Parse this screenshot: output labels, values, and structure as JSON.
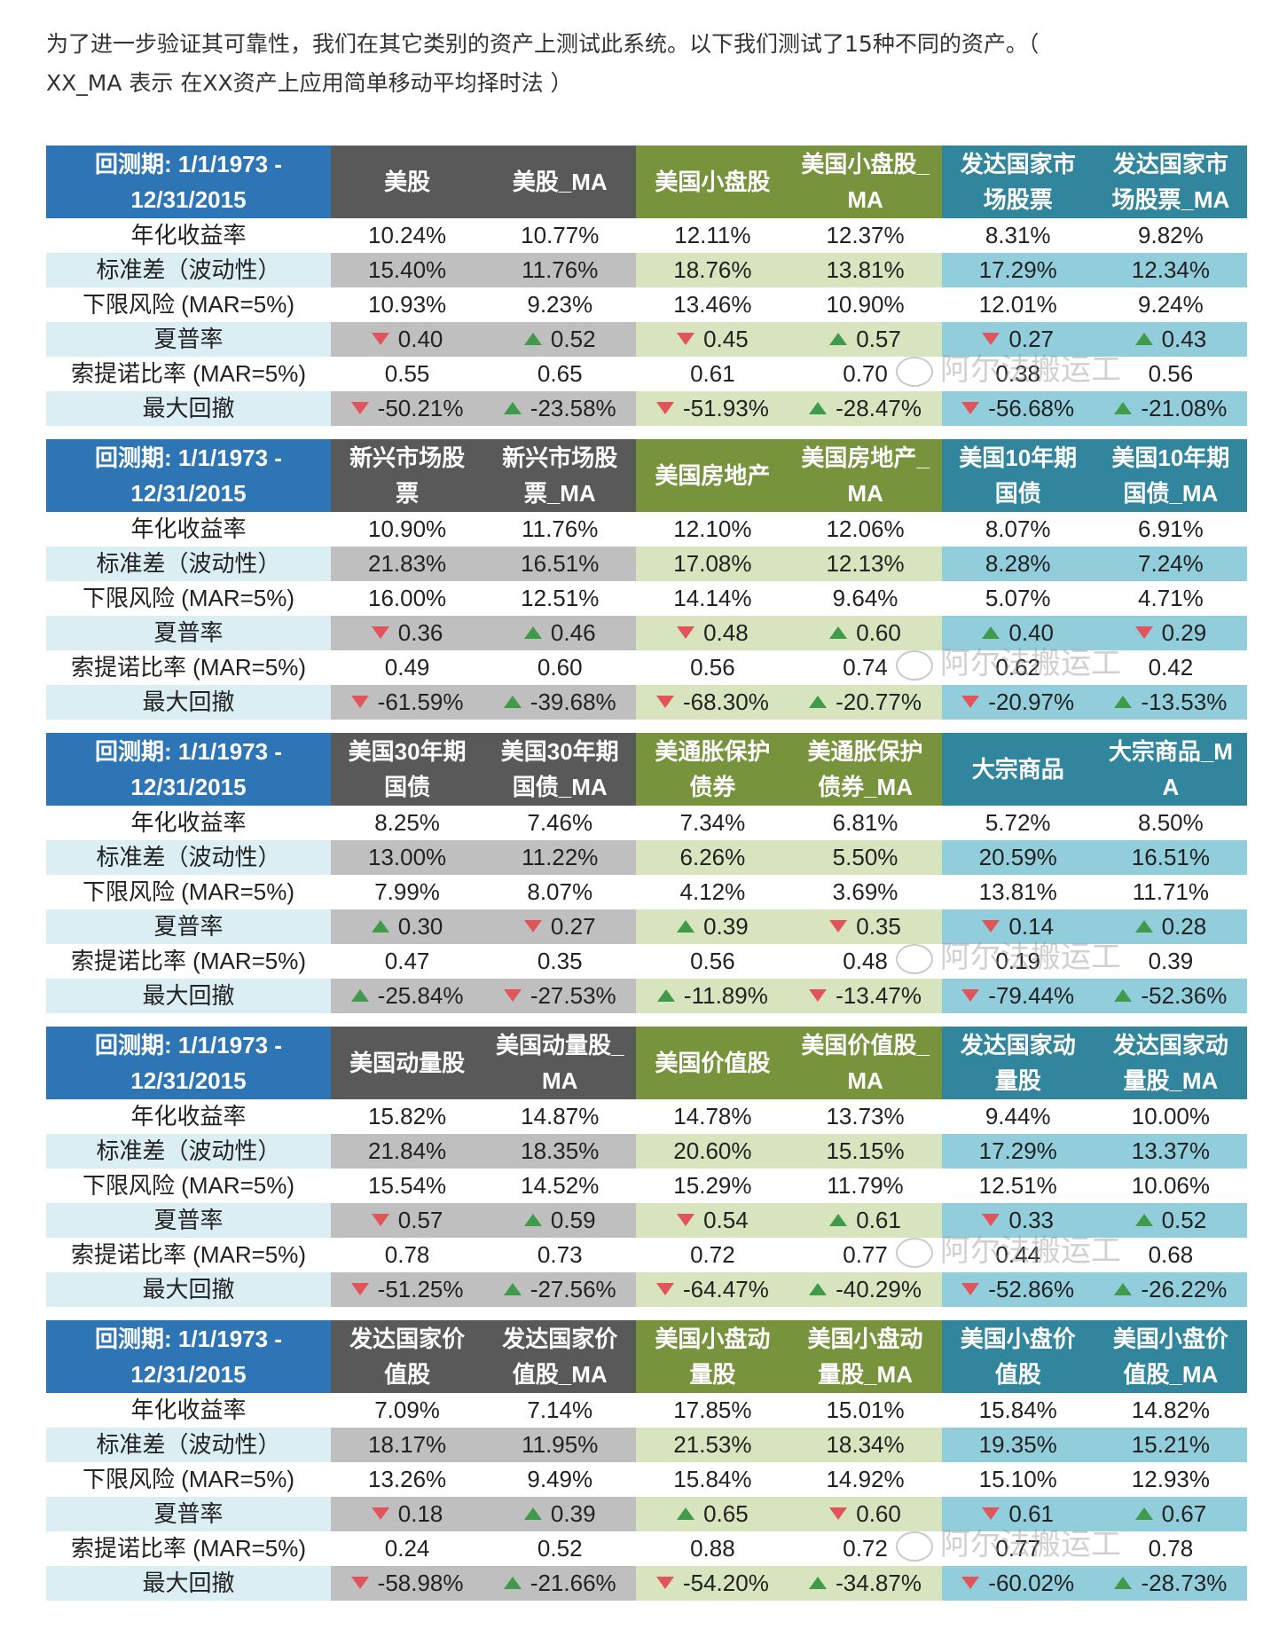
{
  "intro": {
    "line1": "为了进一步验证其可靠性，我们在其它类别的资产上测试此系统。以下我们测试了15种不同的资产。（",
    "line2": "XX_MA 表示 在XX资产上应用简单移动平均择时法 ）"
  },
  "watermark": "阿尔法搬运工",
  "colors": {
    "blue": "#2e75b6",
    "gray": "#595959",
    "green": "#77933c",
    "teal": "#31859c",
    "up": "#3f9a4a",
    "down": "#e0545a"
  },
  "row_labels": [
    "年化收益率",
    "标准差（波动性）",
    "下限风险 (MAR=5%)",
    "夏普率",
    "索提诺比率 (MAR=5%)",
    "最大回撤"
  ],
  "tables": [
    {
      "period": "回测期: 1/1/1973 -\n12/31/2015",
      "headers": [
        "美股",
        "美股_MA",
        "美国小盘股",
        "美国小盘股_\nMA",
        "发达国家市\n场股票",
        "发达国家市\n场股票_MA"
      ],
      "rows": [
        [
          "10.24%",
          "10.77%",
          "12.11%",
          "12.37%",
          "8.31%",
          "9.82%"
        ],
        [
          "15.40%",
          "11.76%",
          "18.76%",
          "13.81%",
          "17.29%",
          "12.34%"
        ],
        [
          "10.93%",
          "9.23%",
          "13.46%",
          "10.90%",
          "12.01%",
          "9.24%"
        ],
        [
          "0.40",
          "0.52",
          "0.45",
          "0.57",
          "0.27",
          "0.43"
        ],
        [
          "0.55",
          "0.65",
          "0.61",
          "0.70",
          "0.38",
          "0.56"
        ],
        [
          "-50.21%",
          "-23.58%",
          "-51.93%",
          "-28.47%",
          "-56.68%",
          "-21.08%"
        ]
      ],
      "sharpe_ind": [
        "down",
        "up",
        "down",
        "up",
        "down",
        "up"
      ],
      "dd_ind": [
        "down",
        "up",
        "down",
        "up",
        "down",
        "up"
      ]
    },
    {
      "period": "回测期: 1/1/1973 -\n12/31/2015",
      "headers": [
        "新兴市场股\n票",
        "新兴市场股\n票_MA",
        "美国房地产",
        "美国房地产_\nMA",
        "美国10年期\n国债",
        "美国10年期\n国债_MA"
      ],
      "rows": [
        [
          "10.90%",
          "11.76%",
          "12.10%",
          "12.06%",
          "8.07%",
          "6.91%"
        ],
        [
          "21.83%",
          "16.51%",
          "17.08%",
          "12.13%",
          "8.28%",
          "7.24%"
        ],
        [
          "16.00%",
          "12.51%",
          "14.14%",
          "9.64%",
          "5.07%",
          "4.71%"
        ],
        [
          "0.36",
          "0.46",
          "0.48",
          "0.60",
          "0.40",
          "0.29"
        ],
        [
          "0.49",
          "0.60",
          "0.56",
          "0.74",
          "0.62",
          "0.42"
        ],
        [
          "-61.59%",
          "-39.68%",
          "-68.30%",
          "-20.77%",
          "-20.97%",
          "-13.53%"
        ]
      ],
      "sharpe_ind": [
        "down",
        "up",
        "down",
        "up",
        "up",
        "down"
      ],
      "dd_ind": [
        "down",
        "up",
        "down",
        "up",
        "down",
        "up"
      ]
    },
    {
      "period": "回测期: 1/1/1973 -\n12/31/2015",
      "headers": [
        "美国30年期\n国债",
        "美国30年期\n国债_MA",
        "美通胀保护\n债券",
        "美通胀保护\n债券_MA",
        "大宗商品",
        "大宗商品_M\nA"
      ],
      "rows": [
        [
          "8.25%",
          "7.46%",
          "7.34%",
          "6.81%",
          "5.72%",
          "8.50%"
        ],
        [
          "13.00%",
          "11.22%",
          "6.26%",
          "5.50%",
          "20.59%",
          "16.51%"
        ],
        [
          "7.99%",
          "8.07%",
          "4.12%",
          "3.69%",
          "13.81%",
          "11.71%"
        ],
        [
          "0.30",
          "0.27",
          "0.39",
          "0.35",
          "0.14",
          "0.28"
        ],
        [
          "0.47",
          "0.35",
          "0.56",
          "0.48",
          "0.19",
          "0.39"
        ],
        [
          "-25.84%",
          "-27.53%",
          "-11.89%",
          "-13.47%",
          "-79.44%",
          "-52.36%"
        ]
      ],
      "sharpe_ind": [
        "up",
        "down",
        "up",
        "down",
        "down",
        "up"
      ],
      "dd_ind": [
        "up",
        "down",
        "up",
        "down",
        "down",
        "up"
      ]
    },
    {
      "period": "回测期: 1/1/1973 -\n12/31/2015",
      "headers": [
        "美国动量股",
        "美国动量股_\nMA",
        "美国价值股",
        "美国价值股_\nMA",
        "发达国家动\n量股",
        "发达国家动\n量股_MA"
      ],
      "rows": [
        [
          "15.82%",
          "14.87%",
          "14.78%",
          "13.73%",
          "9.44%",
          "10.00%"
        ],
        [
          "21.84%",
          "18.35%",
          "20.60%",
          "15.15%",
          "17.29%",
          "13.37%"
        ],
        [
          "15.54%",
          "14.52%",
          "15.29%",
          "11.79%",
          "12.51%",
          "10.06%"
        ],
        [
          "0.57",
          "0.59",
          "0.54",
          "0.61",
          "0.33",
          "0.52"
        ],
        [
          "0.78",
          "0.73",
          "0.72",
          "0.77",
          "0.44",
          "0.68"
        ],
        [
          "-51.25%",
          "-27.56%",
          "-64.47%",
          "-40.29%",
          "-52.86%",
          "-26.22%"
        ]
      ],
      "sharpe_ind": [
        "down",
        "up",
        "down",
        "up",
        "down",
        "up"
      ],
      "dd_ind": [
        "down",
        "up",
        "down",
        "up",
        "down",
        "up"
      ]
    },
    {
      "period": "回测期: 1/1/1973 -\n12/31/2015",
      "headers": [
        "发达国家价\n值股",
        "发达国家价\n值股_MA",
        "美国小盘动\n量股",
        "美国小盘动\n量股_MA",
        "美国小盘价\n值股",
        "美国小盘价\n值股_MA"
      ],
      "rows": [
        [
          "7.09%",
          "7.14%",
          "17.85%",
          "15.01%",
          "15.84%",
          "14.82%"
        ],
        [
          "18.17%",
          "11.95%",
          "21.53%",
          "18.34%",
          "19.35%",
          "15.21%"
        ],
        [
          "13.26%",
          "9.49%",
          "15.84%",
          "14.92%",
          "15.10%",
          "12.93%"
        ],
        [
          "0.18",
          "0.39",
          "0.65",
          "0.60",
          "0.61",
          "0.67"
        ],
        [
          "0.24",
          "0.52",
          "0.88",
          "0.72",
          "0.77",
          "0.78"
        ],
        [
          "-58.98%",
          "-21.66%",
          "-54.20%",
          "-34.87%",
          "-60.02%",
          "-28.73%"
        ]
      ],
      "sharpe_ind": [
        "down",
        "up",
        "up",
        "down",
        "down",
        "up"
      ],
      "dd_ind": [
        "down",
        "up",
        "down",
        "up",
        "down",
        "up"
      ]
    }
  ]
}
